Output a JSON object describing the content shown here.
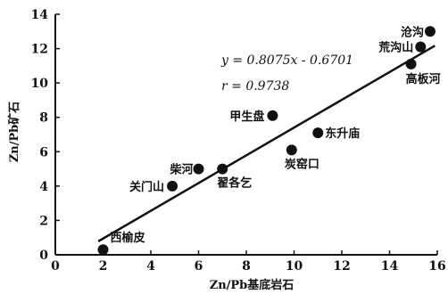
{
  "chart_data": {
    "type": "scatter",
    "title": "",
    "xlabel": "Zn/Pb基底岩石",
    "ylabel": "Zn/Pb矿石",
    "xlim": [
      0,
      16
    ],
    "ylim": [
      0,
      14
    ],
    "x_ticks": [
      "0",
      "2",
      "4",
      "6",
      "8",
      "10",
      "12",
      "14",
      "16"
    ],
    "y_ticks": [
      "0",
      "2",
      "4",
      "6",
      "8",
      "10",
      "12",
      "14"
    ],
    "grid": false,
    "points": [
      {
        "label": "西榆皮",
        "x": 2.0,
        "y": 0.3
      },
      {
        "label": "关门山",
        "x": 4.9,
        "y": 4.0
      },
      {
        "label": "柴河",
        "x": 6.0,
        "y": 5.0
      },
      {
        "label": "翟各乞",
        "x": 7.0,
        "y": 5.0
      },
      {
        "label": "甲生盘",
        "x": 9.1,
        "y": 8.1
      },
      {
        "label": "炭窑口",
        "x": 9.9,
        "y": 6.1
      },
      {
        "label": "东升庙",
        "x": 11.0,
        "y": 7.1
      },
      {
        "label": "高板河",
        "x": 14.9,
        "y": 11.1
      },
      {
        "label": "荒沟山",
        "x": 15.3,
        "y": 12.1
      },
      {
        "label": "沧沟",
        "x": 15.7,
        "y": 13.0
      }
    ],
    "fit_line": {
      "slope": 0.8075,
      "intercept": -0.6701,
      "x_range": [
        1.8,
        15.9
      ]
    },
    "annotations": {
      "equation": "y = 0.8075x - 0.6701",
      "r": "r = 0.9738"
    }
  }
}
